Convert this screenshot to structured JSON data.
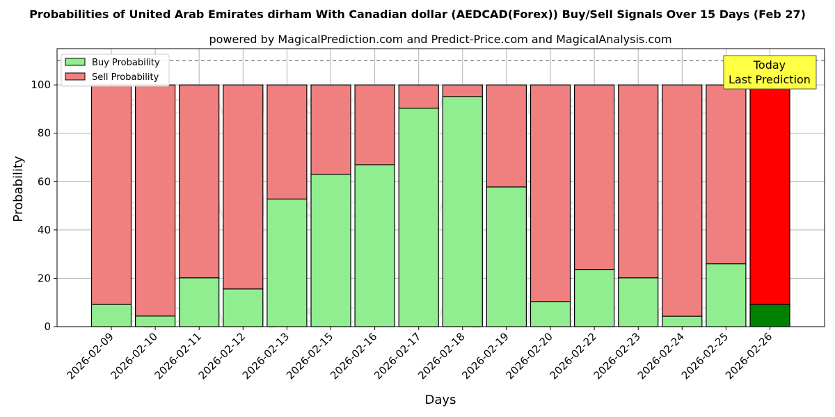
{
  "chart_data": {
    "type": "bar",
    "stacked": true,
    "title": "Probabilities of United Arab Emirates dirham With Canadian dollar (AEDCAD(Forex)) Buy/Sell Signals Over 15 Days (Feb 27)",
    "subtitle": "powered by MagicalPrediction.com and Predict-Price.com and MagicalAnalysis.com",
    "xlabel": "Days",
    "ylabel": "Probability",
    "ylim": [
      0,
      115
    ],
    "yticks": [
      0,
      20,
      40,
      60,
      80,
      100
    ],
    "grid": true,
    "legend_position": "top-left",
    "reference_line": 110,
    "categories": [
      "2026-02-09",
      "2026-02-10",
      "2026-02-11",
      "2026-02-12",
      "2026-02-13",
      "2026-02-15",
      "2026-02-16",
      "2026-02-17",
      "2026-02-18",
      "2026-02-19",
      "2026-02-20",
      "2026-02-22",
      "2026-02-23",
      "2026-02-24",
      "2026-02-25",
      "2026-02-26"
    ],
    "series": [
      {
        "name": "Buy Probability",
        "color": "#90ee90",
        "values": [
          9.2,
          4.4,
          20.2,
          15.6,
          52.8,
          63.0,
          67.0,
          90.4,
          95.2,
          57.8,
          10.4,
          23.7,
          20.2,
          4.3,
          26.0,
          9.2
        ]
      },
      {
        "name": "Sell Probability",
        "color": "#f08080",
        "values": [
          90.8,
          95.6,
          79.8,
          84.4,
          47.2,
          37.0,
          33.0,
          9.6,
          4.8,
          42.2,
          89.6,
          76.3,
          79.8,
          95.7,
          74.0,
          90.8
        ]
      }
    ],
    "highlight": {
      "index": 15,
      "buy_color": "#008000",
      "sell_color": "#ff0000"
    },
    "annotation": {
      "line1": "Today",
      "line2": "Last Prediction",
      "color": "#ffff44"
    },
    "watermarks": [
      "MagicalAnalysis.com",
      "MagicalPrediction.com"
    ]
  }
}
